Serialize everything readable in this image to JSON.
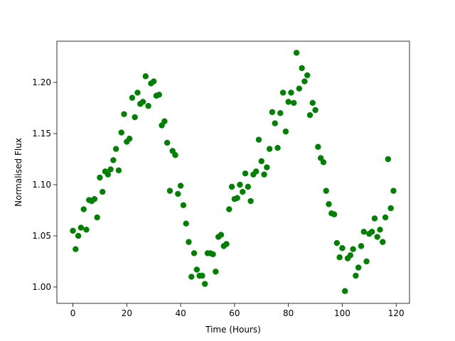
{
  "chart_data": {
    "type": "scatter",
    "x_label": "Time (Hours)",
    "y_label": "Normalised Flux",
    "color": "#008000",
    "xlim": [
      -5.95,
      124.95
    ],
    "ylim": [
      0.984,
      1.2403
    ],
    "xticks": [
      0,
      20,
      40,
      60,
      80,
      100,
      120
    ],
    "yticks": [
      {
        "value": 1.0,
        "label": "1.00"
      },
      {
        "value": 1.05,
        "label": "1.05"
      },
      {
        "value": 1.1,
        "label": "1.10"
      },
      {
        "value": 1.15,
        "label": "1.15"
      },
      {
        "value": 1.2,
        "label": "1.20"
      }
    ],
    "x": [
      0,
      1,
      2,
      3,
      4,
      5,
      6,
      7,
      8,
      9,
      10,
      11,
      12,
      13,
      14,
      15,
      16,
      17,
      18,
      19,
      20,
      21,
      22,
      23,
      24,
      25,
      26,
      27,
      28,
      29,
      30,
      31,
      32,
      33,
      34,
      35,
      36,
      37,
      38,
      39,
      40,
      41,
      42,
      43,
      44,
      45,
      46,
      47,
      48,
      49,
      50,
      51,
      52,
      53,
      54,
      55,
      56,
      57,
      58,
      59,
      60,
      61,
      62,
      63,
      64,
      65,
      66,
      67,
      68,
      69,
      70,
      71,
      72,
      73,
      74,
      75,
      76,
      77,
      78,
      79,
      80,
      81,
      82,
      83,
      84,
      85,
      86,
      87,
      88,
      89,
      90,
      91,
      92,
      93,
      94,
      95,
      96,
      97,
      98,
      99,
      100,
      101,
      102,
      103,
      104,
      105,
      106,
      107,
      108,
      109,
      110,
      111,
      112,
      113,
      114,
      115,
      116,
      117,
      118,
      119
    ],
    "values": [
      1.055,
      1.037,
      1.05,
      1.058,
      1.076,
      1.056,
      1.085,
      1.084,
      1.086,
      1.068,
      1.107,
      1.093,
      1.113,
      1.11,
      1.115,
      1.124,
      1.135,
      1.114,
      1.151,
      1.169,
      1.142,
      1.145,
      1.185,
      1.166,
      1.19,
      1.179,
      1.181,
      1.206,
      1.177,
      1.199,
      1.201,
      1.187,
      1.188,
      1.158,
      1.162,
      1.141,
      1.094,
      1.133,
      1.129,
      1.091,
      1.099,
      1.08,
      1.062,
      1.044,
      1.01,
      1.033,
      1.017,
      1.011,
      1.011,
      1.003,
      1.033,
      1.033,
      1.032,
      1.015,
      1.049,
      1.051,
      1.04,
      1.042,
      1.076,
      1.098,
      1.086,
      1.087,
      1.1,
      1.093,
      1.111,
      1.098,
      1.084,
      1.11,
      1.113,
      1.144,
      1.123,
      1.11,
      1.117,
      1.135,
      1.171,
      1.16,
      1.136,
      1.17,
      1.19,
      1.152,
      1.181,
      1.19,
      1.18,
      1.229,
      1.194,
      1.214,
      1.201,
      1.207,
      1.168,
      1.18,
      1.173,
      1.137,
      1.126,
      1.122,
      1.094,
      1.081,
      1.072,
      1.071,
      1.043,
      1.029,
      1.038,
      0.996,
      1.028,
      1.031,
      1.037,
      1.011,
      1.019,
      1.04,
      1.054,
      1.025,
      1.052,
      1.054,
      1.067,
      1.049,
      1.056,
      1.044,
      1.068,
      1.125,
      1.077,
      1.094
    ]
  }
}
